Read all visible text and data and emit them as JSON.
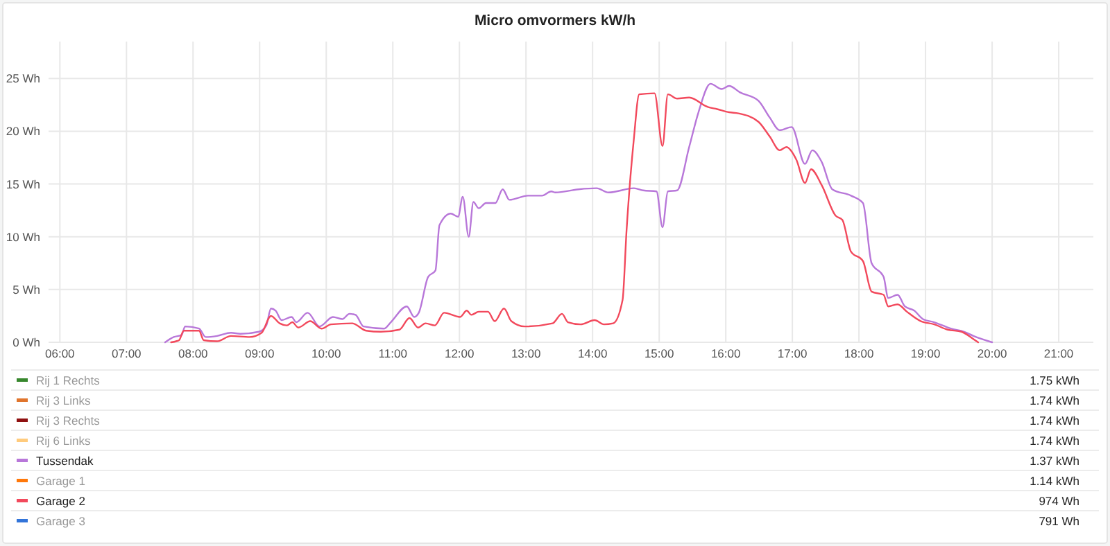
{
  "chart_data": {
    "type": "line",
    "title": "Micro omvormers kW/h",
    "xlim": [
      5.83,
      21.52
    ],
    "ylim": [
      0,
      28.5
    ],
    "xticks": [
      {
        "value": 6,
        "label": "06:00"
      },
      {
        "value": 7,
        "label": "07:00"
      },
      {
        "value": 8,
        "label": "08:00"
      },
      {
        "value": 9,
        "label": "09:00"
      },
      {
        "value": 10,
        "label": "10:00"
      },
      {
        "value": 11,
        "label": "11:00"
      },
      {
        "value": 12,
        "label": "12:00"
      },
      {
        "value": 13,
        "label": "13:00"
      },
      {
        "value": 14,
        "label": "14:00"
      },
      {
        "value": 15,
        "label": "15:00"
      },
      {
        "value": 16,
        "label": "16:00"
      },
      {
        "value": 17,
        "label": "17:00"
      },
      {
        "value": 18,
        "label": "18:00"
      },
      {
        "value": 19,
        "label": "19:00"
      },
      {
        "value": 20,
        "label": "20:00"
      },
      {
        "value": 21,
        "label": "21:00"
      }
    ],
    "yticks": [
      {
        "value": 0,
        "label": "0 Wh"
      },
      {
        "value": 5,
        "label": "5 Wh"
      },
      {
        "value": 10,
        "label": "10 Wh"
      },
      {
        "value": 15,
        "label": "15 Wh"
      },
      {
        "value": 20,
        "label": "20 Wh"
      },
      {
        "value": 25,
        "label": "25 Wh"
      }
    ],
    "grid": true,
    "legend": "bottom",
    "line_style": "solid",
    "series": [
      {
        "name": "Rij 1 Rechts",
        "color": "#37872d"
      },
      {
        "name": "Rij 3 Links",
        "color": "#e0752d"
      },
      {
        "name": "Rij 3 Rechts",
        "color": "#8f1010"
      },
      {
        "name": "Rij 6 Links",
        "color": "#ffcb7d"
      },
      {
        "name": "Tussendak",
        "color": "#b877d9",
        "x": [
          7.58,
          7.71,
          7.83,
          7.88,
          8.09,
          8.19,
          8.36,
          8.57,
          8.71,
          8.99,
          9.1,
          9.17,
          9.24,
          9.33,
          9.48,
          9.55,
          9.72,
          9.9,
          10.1,
          10.24,
          10.35,
          10.44,
          10.56,
          10.87,
          10.97,
          11.21,
          11.32,
          11.39,
          11.53,
          11.64,
          11.7,
          11.87,
          11.98,
          12.05,
          12.14,
          12.21,
          12.29,
          12.4,
          12.54,
          12.65,
          12.75,
          13.03,
          13.24,
          13.38,
          13.44,
          13.79,
          14.06,
          14.24,
          14.62,
          14.76,
          14.96,
          15.05,
          15.13,
          15.27,
          15.45,
          15.59,
          15.77,
          15.94,
          16.05,
          16.21,
          16.49,
          16.66,
          16.81,
          16.99,
          17.19,
          17.3,
          17.44,
          17.6,
          17.88,
          18.06,
          18.19,
          18.37,
          18.44,
          18.58,
          18.69,
          18.83,
          18.96,
          19.13,
          19.38,
          19.58,
          19.72,
          20.0
        ],
        "values": [
          0,
          0.5,
          0.7,
          1.5,
          1.3,
          0.5,
          0.6,
          0.9,
          0.8,
          1.0,
          1.6,
          3.2,
          3.0,
          2.1,
          2.4,
          1.9,
          2.8,
          1.5,
          2.4,
          2.2,
          2.7,
          2.6,
          1.5,
          1.3,
          1.9,
          3.4,
          2.4,
          2.8,
          6.2,
          6.8,
          11.1,
          12.2,
          11.9,
          13.8,
          10.0,
          13.3,
          12.7,
          13.2,
          13.2,
          14.5,
          13.5,
          13.9,
          13.9,
          14.3,
          14.2,
          14.5,
          14.6,
          14.2,
          14.6,
          14.4,
          14.3,
          10.9,
          14.3,
          14.4,
          18.5,
          21.8,
          24.5,
          24.0,
          24.3,
          23.7,
          22.9,
          21.3,
          20.1,
          20.4,
          16.9,
          18.2,
          17.1,
          14.5,
          13.9,
          13.2,
          7.5,
          6.2,
          4.2,
          4.5,
          3.4,
          3.0,
          2.2,
          1.9,
          1.3,
          1.0,
          0.6,
          0.0
        ]
      },
      {
        "name": "Garage 1",
        "color": "#ff780a"
      },
      {
        "name": "Garage 2",
        "color": "#f2495c",
        "x": [
          7.67,
          7.79,
          7.86,
          8.09,
          8.16,
          8.36,
          8.57,
          8.85,
          9.03,
          9.17,
          9.3,
          9.41,
          9.49,
          9.58,
          9.76,
          9.93,
          10.07,
          10.39,
          10.6,
          10.82,
          11.1,
          11.25,
          11.38,
          11.49,
          11.63,
          11.77,
          12.01,
          12.11,
          12.18,
          12.29,
          12.43,
          12.53,
          12.67,
          12.78,
          12.98,
          13.4,
          13.54,
          13.63,
          13.82,
          14.03,
          14.17,
          14.31,
          14.45,
          14.51,
          14.62,
          14.7,
          14.93,
          15.05,
          15.13,
          15.27,
          15.45,
          15.73,
          15.87,
          16.05,
          16.19,
          16.49,
          16.66,
          16.81,
          16.91,
          17.06,
          17.19,
          17.28,
          17.44,
          17.65,
          17.75,
          17.88,
          18.06,
          18.19,
          18.37,
          18.44,
          18.58,
          18.72,
          18.93,
          19.13,
          19.33,
          19.54,
          19.72,
          19.79
        ],
        "values": [
          0,
          0.2,
          1.1,
          1.1,
          0.2,
          0.1,
          0.6,
          0.5,
          0.9,
          2.5,
          1.8,
          1.6,
          1.9,
          1.4,
          2.0,
          1.3,
          1.7,
          1.8,
          1.1,
          1.0,
          1.2,
          2.3,
          1.4,
          1.8,
          1.6,
          2.8,
          2.4,
          3.0,
          2.6,
          2.9,
          2.9,
          2.0,
          3.2,
          2.0,
          1.5,
          1.8,
          2.7,
          1.9,
          1.7,
          2.1,
          1.7,
          1.8,
          4.0,
          10.6,
          19.3,
          23.5,
          23.6,
          18.6,
          23.5,
          23.1,
          23.2,
          22.3,
          22.1,
          21.8,
          21.7,
          20.9,
          19.5,
          18.2,
          18.5,
          17.3,
          15.1,
          16.4,
          14.9,
          12.0,
          11.6,
          8.6,
          7.7,
          4.8,
          4.5,
          3.4,
          3.6,
          2.9,
          2.0,
          1.7,
          1.2,
          1.0,
          0.3,
          0
        ]
      },
      {
        "name": "Garage 3",
        "color": "#3274d9"
      }
    ],
    "annotations": [
      "1.75 kWh",
      "1.74 kWh",
      "1.74 kWh",
      "1.74 kWh",
      "1.37 kWh",
      "1.14 kWh",
      "974 Wh",
      "791 Wh"
    ]
  }
}
